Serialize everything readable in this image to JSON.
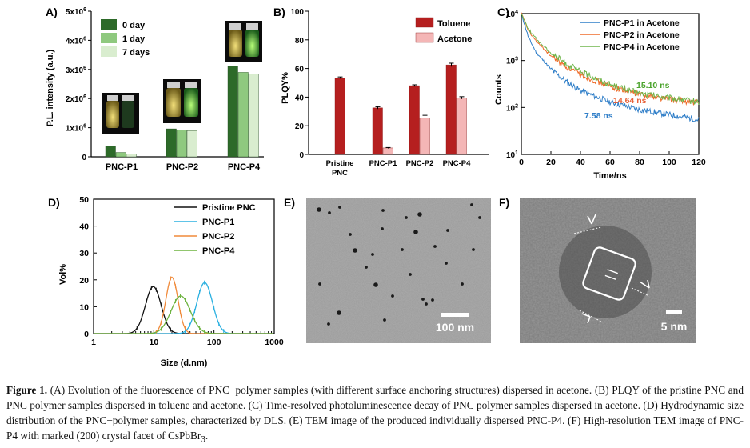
{
  "panels": {
    "A": {
      "label": "A)",
      "ylabel": "P.L. intensity (a.u.)",
      "yticks": [
        {
          "base": "0",
          "exp": ""
        },
        {
          "base": "1x10",
          "exp": "6"
        },
        {
          "base": "2x10",
          "exp": "6"
        },
        {
          "base": "3x10",
          "exp": "6"
        },
        {
          "base": "4x10",
          "exp": "6"
        },
        {
          "base": "5x10",
          "exp": "6"
        }
      ],
      "legend": [
        "0 day",
        "1 day",
        "7 days"
      ],
      "colors": [
        "#2d6a29",
        "#8fc97f",
        "#d9edcf"
      ]
    },
    "B": {
      "label": "B)",
      "ylabel": "PLQY%",
      "yticks": [
        "0",
        "20",
        "40",
        "60",
        "80",
        "100"
      ],
      "legend": [
        "Toluene",
        "Acetone"
      ],
      "colors": [
        "#b51f1f",
        "#f4b6b6"
      ]
    },
    "C": {
      "label": "C)",
      "xlabel": "Time/ns",
      "ylabel": "Counts",
      "xticks": [
        "0",
        "20",
        "40",
        "60",
        "80",
        "100",
        "120"
      ],
      "yticks": [
        {
          "base": "10",
          "exp": "1"
        },
        {
          "base": "10",
          "exp": "2"
        },
        {
          "base": "10",
          "exp": "3"
        },
        {
          "base": "10",
          "exp": "4"
        }
      ],
      "legend": [
        "PNC-P1 in Acetone",
        "PNC-P2 in Acetone",
        "PNC-P4 in Acetone"
      ],
      "colors": [
        "#2f7ec8",
        "#ef6c2a",
        "#6fb54b"
      ],
      "annotations": [
        {
          "text": "15.10 ns",
          "color": "#4aa32b"
        },
        {
          "text": "14.64 ns",
          "color": "#e8623a"
        },
        {
          "text": "7.58 ns",
          "color": "#2f7ec8"
        }
      ]
    },
    "D": {
      "label": "D)",
      "xlabel": "Size (d.nm)",
      "ylabel": "Vol%",
      "xticks": [
        "1",
        "10",
        "100",
        "1000"
      ],
      "yticks": [
        "0",
        "10",
        "20",
        "30",
        "40",
        "50"
      ],
      "legend": [
        "Pristine PNC",
        "PNC-P1",
        "PNC-P2",
        "PNC-P4"
      ],
      "colors": [
        "#111111",
        "#2bb0e0",
        "#f08a3a",
        "#6db33f"
      ]
    },
    "E": {
      "label": "E)",
      "scalebar": "100 nm"
    },
    "F": {
      "label": "F)",
      "scalebar": "5 nm"
    }
  },
  "chart_data": [
    {
      "type": "bar",
      "title": "",
      "ylabel": "P.L. intensity (a.u.)",
      "ylim": [
        0,
        5000000
      ],
      "categories": [
        "PNC-P1",
        "PNC-P2",
        "PNC-P4"
      ],
      "series": [
        {
          "name": "0 day",
          "values": [
            370000,
            960000,
            3120000
          ]
        },
        {
          "name": "1 day",
          "values": [
            150000,
            920000,
            2900000
          ]
        },
        {
          "name": "7 days",
          "values": [
            90000,
            900000,
            2850000
          ]
        }
      ]
    },
    {
      "type": "bar",
      "title": "",
      "ylabel": "PLQY%",
      "ylim": [
        0,
        100
      ],
      "categories": [
        "Pristine PNC",
        "PNC-P1",
        "PNC-P2",
        "PNC-P4"
      ],
      "series": [
        {
          "name": "Toluene",
          "values": [
            53.5,
            32.5,
            48,
            62.5
          ],
          "errors": [
            0.6,
            0.8,
            0.6,
            1.2
          ]
        },
        {
          "name": "Acetone",
          "values": [
            null,
            4.5,
            25.5,
            39.5
          ],
          "errors": [
            null,
            0.3,
            1.8,
            0.8
          ]
        }
      ]
    },
    {
      "type": "line",
      "title": "",
      "xlabel": "Time/ns",
      "ylabel": "Counts",
      "xlim": [
        0,
        120
      ],
      "ylim": [
        10,
        10000
      ],
      "yscale": "log",
      "series": [
        {
          "name": "PNC-P1 in Acetone",
          "lifetime": "7.58 ns",
          "x": [
            0,
            5,
            10,
            20,
            30,
            40,
            60,
            80,
            100,
            120
          ],
          "y": [
            10000,
            3000,
            1500,
            650,
            360,
            230,
            130,
            90,
            70,
            55
          ]
        },
        {
          "name": "PNC-P2 in Acetone",
          "lifetime": "14.64 ns",
          "x": [
            0,
            5,
            10,
            20,
            30,
            40,
            60,
            80,
            100,
            120
          ],
          "y": [
            10000,
            4200,
            2600,
            1250,
            750,
            500,
            280,
            190,
            150,
            125
          ]
        },
        {
          "name": "PNC-P4 in Acetone",
          "lifetime": "15.10 ns",
          "x": [
            0,
            5,
            10,
            20,
            30,
            40,
            60,
            80,
            100,
            120
          ],
          "y": [
            10000,
            4600,
            2900,
            1450,
            880,
            580,
            310,
            200,
            160,
            130
          ]
        }
      ]
    },
    {
      "type": "line",
      "title": "",
      "xlabel": "Size (d.nm)",
      "ylabel": "Vol%",
      "xlim": [
        1,
        1000
      ],
      "xscale": "log",
      "ylim": [
        0,
        50
      ],
      "series": [
        {
          "name": "Pristine PNC",
          "peak_x": 9.8,
          "peak_y": 17.5,
          "sigma_log10": 0.13
        },
        {
          "name": "PNC-P1",
          "peak_x": 70,
          "peak_y": 19,
          "sigma_log10": 0.13
        },
        {
          "name": "PNC-P2",
          "peak_x": 20,
          "peak_y": 21,
          "sigma_log10": 0.1
        },
        {
          "name": "PNC-P4",
          "peak_x": 28,
          "peak_y": 14,
          "sigma_log10": 0.16
        }
      ]
    }
  ],
  "caption": {
    "label": "Figure 1.",
    "text": "(A) Evolution of the fluorescence of PNC−polymer samples (with different surface anchoring structures) dispersed in acetone. (B) PLQY of the pristine PNC and PNC polymer samples dispersed in toluene and acetone. (C) Time-resolved photoluminescence decay of PNC polymer samples dispersed in acetone. (D) Hydrodynamic size distribution of the PNC−polymer samples, characterized by DLS. (E) TEM image of the produced individually dispersed PNC-P4. (F) High-resolution TEM image of PNC-P4 with marked (200) crystal facet of CsPbBr",
    "sub": "3",
    "end": "."
  }
}
